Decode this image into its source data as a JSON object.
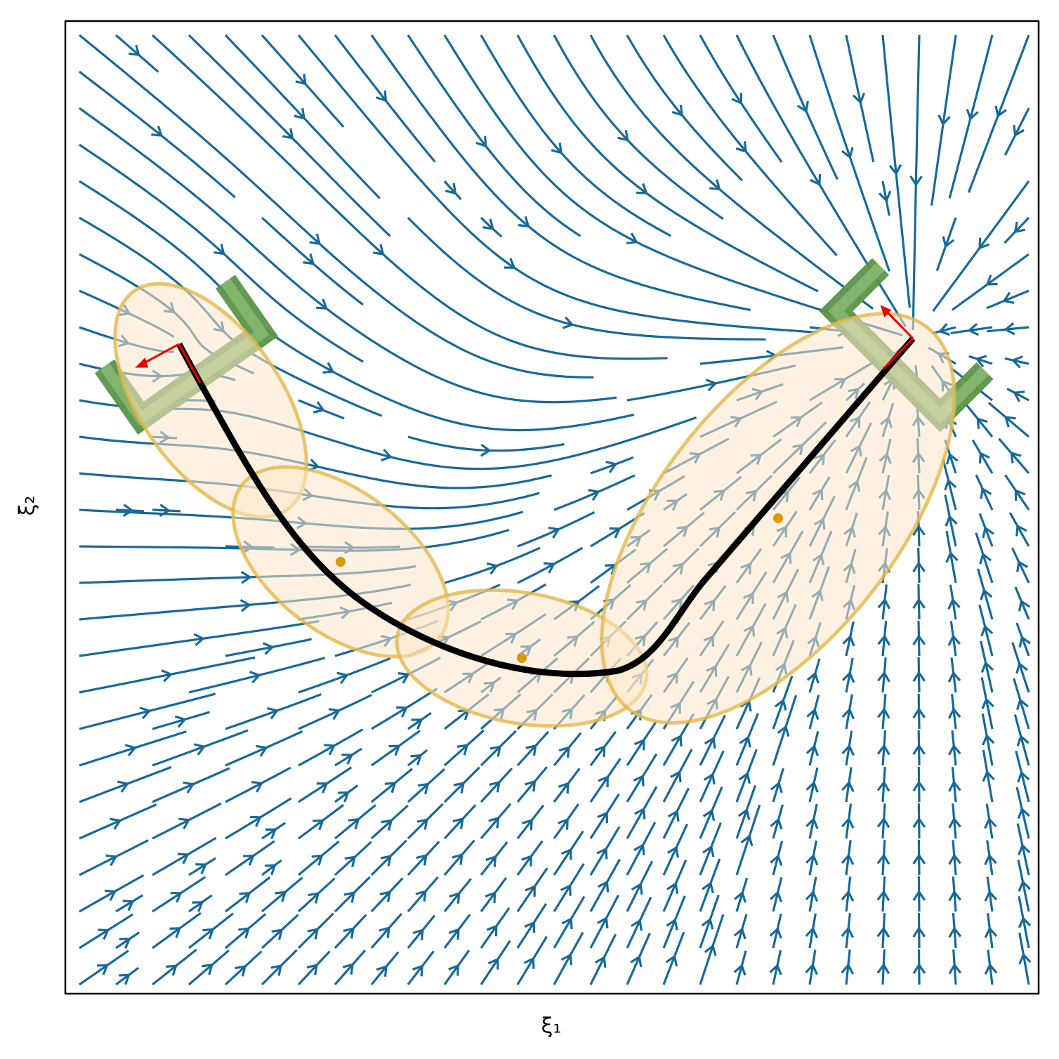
{
  "chart_data": {
    "type": "streamplot",
    "xlabel": "ξ₁",
    "ylabel": "ξ₂"
  }
}
